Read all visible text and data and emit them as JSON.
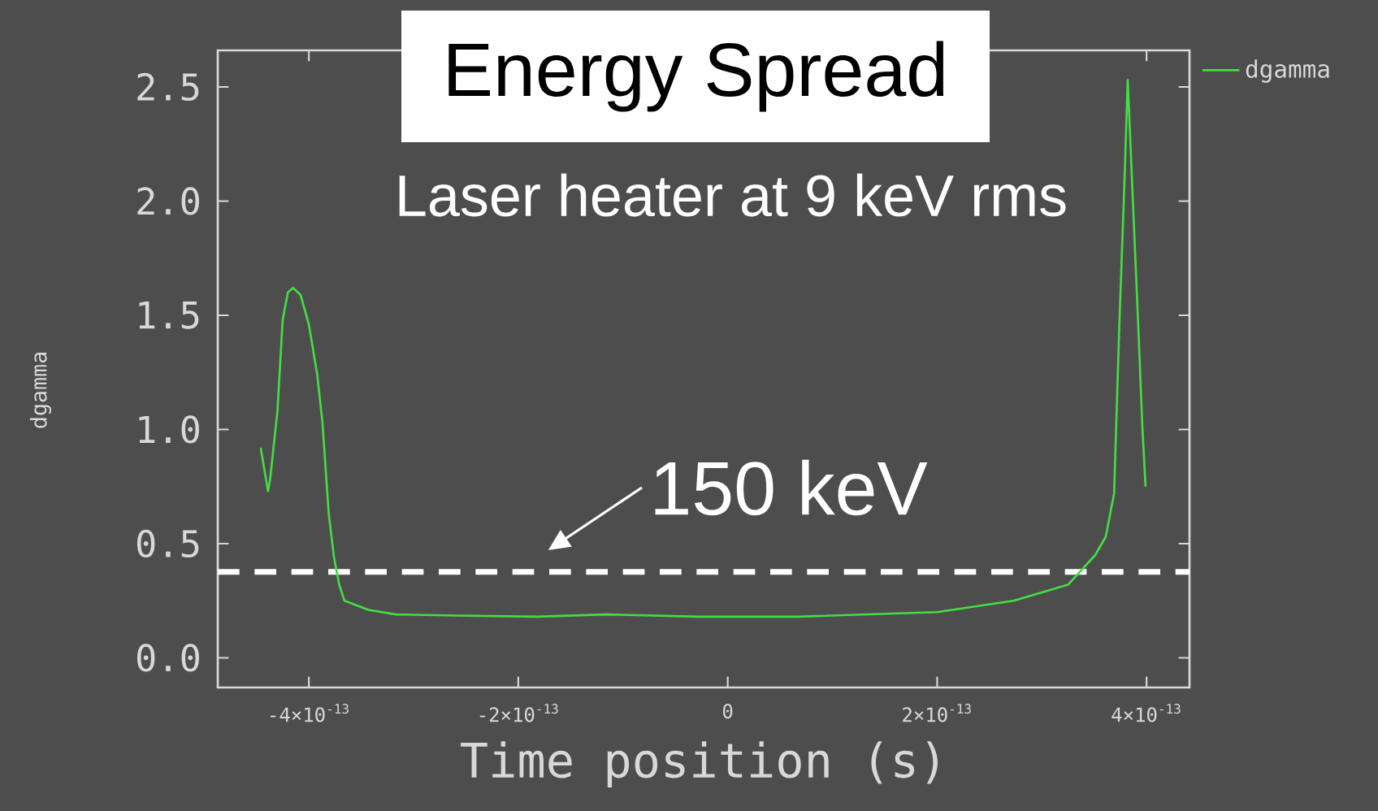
{
  "chart_data": {
    "type": "line",
    "title": "Energy Spread",
    "subtitle": "Laser heater at 9 keV rms",
    "xlabel": "Time position (s)",
    "ylabel": "dgamma",
    "xlim": [
      -4.87e-13,
      4.41e-13
    ],
    "ylim": [
      -0.13,
      2.66
    ],
    "xticks": [
      {
        "value": -4e-13,
        "label": "-4×10$^{-13}$"
      },
      {
        "value": -2e-13,
        "label": "-2×10$^{-13}$"
      },
      {
        "value": 0,
        "label": "0"
      },
      {
        "value": 2e-13,
        "label": "2×10$^{-13}$"
      },
      {
        "value": 4e-13,
        "label": "4×10$^{-13}$"
      }
    ],
    "yticks": [
      {
        "value": 0,
        "label": "0.0"
      },
      {
        "value": 0.5,
        "label": "0.5"
      },
      {
        "value": 1,
        "label": "1.0"
      },
      {
        "value": 1.5,
        "label": "1.5"
      },
      {
        "value": 2,
        "label": "2.0"
      },
      {
        "value": 2.5,
        "label": "2.5"
      }
    ],
    "x": [
      -4.46e-13,
      -4.39e-13,
      -4.37e-13,
      -4.3e-13,
      -4.25e-13,
      -4.2e-13,
      -4.15e-13,
      -4.08e-13,
      -4e-13,
      -3.92e-13,
      -3.87e-13,
      -3.81e-13,
      -3.76e-13,
      -3.71e-13,
      -3.66e-13,
      -3.43e-13,
      -3.17e-13,
      -2.6e-13,
      -1.82e-13,
      -1.16e-13,
      -2.7e-14,
      6.7e-14,
      2e-13,
      2.73e-13,
      3.25e-13,
      3.51e-13,
      3.61e-13,
      3.69e-13,
      3.74e-13,
      3.79e-13,
      3.82e-13,
      3.86e-13,
      3.92e-13,
      3.96e-13,
      3.99e-13
    ],
    "series": [
      {
        "name": "dgamma",
        "color": "#44dd44",
        "values": [
          0.92,
          0.73,
          0.78,
          1.08,
          1.48,
          1.6,
          1.62,
          1.59,
          1.46,
          1.24,
          1.03,
          0.63,
          0.44,
          0.32,
          0.25,
          0.21,
          0.19,
          0.185,
          0.18,
          0.19,
          0.18,
          0.18,
          0.2,
          0.25,
          0.32,
          0.45,
          0.53,
          0.72,
          1.46,
          2.1,
          2.53,
          2.1,
          1.46,
          1.01,
          0.75
        ]
      }
    ],
    "ref_lines": [
      {
        "axis": "y",
        "value": 0.376,
        "label": "150 keV",
        "color": "#ffffff",
        "line_style": "dashed"
      }
    ],
    "legend": "top right"
  }
}
